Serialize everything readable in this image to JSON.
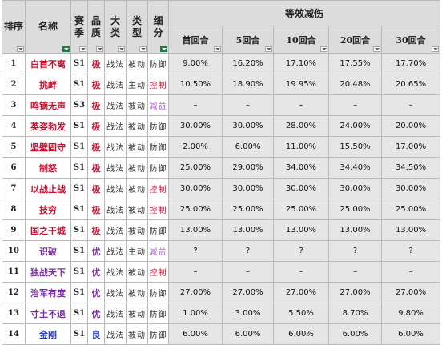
{
  "headers": {
    "rank": "排序",
    "name": "名称",
    "season": "赛季",
    "grade": "品质",
    "category": "大类",
    "type": "类型",
    "subtype": "细分",
    "group": "等效减伤",
    "rounds": [
      "首回合",
      "5回合",
      "10回合",
      "20回合",
      "30回合"
    ]
  },
  "colors": {
    "header_bg": "#dcdcdc",
    "value_bg": "#e6e6e6",
    "name_red": "#c41230",
    "name_blue": "#2a3fb0",
    "name_purple": "#7a2fa0",
    "grade_red": "#c41230",
    "grade_purple": "#7a2fa0",
    "grade_blue": "#2a3fb0",
    "control_red": "#c41230",
    "benefit_purple": "#b05ad0",
    "filter_active": "#1f7a4a"
  },
  "rows": [
    {
      "rank": "1",
      "name": "白首不离",
      "name_color": "#c41230",
      "season": "S1",
      "grade": "极",
      "grade_color": "#c41230",
      "category": "战法",
      "type": "被动",
      "subtype": "防御",
      "sub_color": "#333333",
      "v": [
        "9.00%",
        "16.20%",
        "17.10%",
        "17.55%",
        "17.70%"
      ]
    },
    {
      "rank": "2",
      "name": "挑衅",
      "name_color": "#c41230",
      "season": "S1",
      "grade": "极",
      "grade_color": "#c41230",
      "category": "战法",
      "type": "主动",
      "subtype": "控制",
      "sub_color": "#c41230",
      "v": [
        "10.50%",
        "18.90%",
        "19.95%",
        "20.48%",
        "20.65%"
      ]
    },
    {
      "rank": "3",
      "name": "鸣镝无声",
      "name_color": "#c41230",
      "season": "S3",
      "grade": "极",
      "grade_color": "#c41230",
      "category": "战法",
      "type": "被动",
      "subtype": "减益",
      "sub_color": "#b05ad0",
      "v": [
        "–",
        "–",
        "–",
        "–",
        "–"
      ]
    },
    {
      "rank": "4",
      "name": "英姿勃发",
      "name_color": "#c41230",
      "season": "S1",
      "grade": "极",
      "grade_color": "#c41230",
      "category": "战法",
      "type": "被动",
      "subtype": "防御",
      "sub_color": "#333333",
      "v": [
        "30.00%",
        "30.00%",
        "28.00%",
        "24.00%",
        "20.00%"
      ]
    },
    {
      "rank": "5",
      "name": "坚壁固守",
      "name_color": "#c41230",
      "season": "S1",
      "grade": "极",
      "grade_color": "#c41230",
      "category": "战法",
      "type": "被动",
      "subtype": "防御",
      "sub_color": "#333333",
      "v": [
        "2.00%",
        "6.00%",
        "11.00%",
        "15.50%",
        "17.00%"
      ]
    },
    {
      "rank": "6",
      "name": "制怒",
      "name_color": "#c41230",
      "season": "S1",
      "grade": "极",
      "grade_color": "#c41230",
      "category": "战法",
      "type": "被动",
      "subtype": "防御",
      "sub_color": "#333333",
      "v": [
        "25.00%",
        "29.00%",
        "34.00%",
        "34.40%",
        "34.50%"
      ]
    },
    {
      "rank": "7",
      "name": "以战止战",
      "name_color": "#c41230",
      "season": "S1",
      "grade": "极",
      "grade_color": "#c41230",
      "category": "战法",
      "type": "被动",
      "subtype": "控制",
      "sub_color": "#c41230",
      "v": [
        "30.00%",
        "30.00%",
        "30.00%",
        "30.00%",
        "30.00%"
      ]
    },
    {
      "rank": "8",
      "name": "技穷",
      "name_color": "#c41230",
      "season": "S1",
      "grade": "极",
      "grade_color": "#c41230",
      "category": "战法",
      "type": "被动",
      "subtype": "控制",
      "sub_color": "#c41230",
      "v": [
        "25.00%",
        "25.00%",
        "25.00%",
        "25.00%",
        "25.00%"
      ]
    },
    {
      "rank": "9",
      "name": "国之干城",
      "name_color": "#c41230",
      "season": "S1",
      "grade": "极",
      "grade_color": "#c41230",
      "category": "战法",
      "type": "被动",
      "subtype": "防御",
      "sub_color": "#333333",
      "v": [
        "13.00%",
        "13.00%",
        "13.00%",
        "13.00%",
        "13.00%"
      ]
    },
    {
      "rank": "10",
      "name": "识破",
      "name_color": "#7a2fa0",
      "season": "S1",
      "grade": "优",
      "grade_color": "#7a2fa0",
      "category": "战法",
      "type": "主动",
      "subtype": "减益",
      "sub_color": "#b05ad0",
      "v": [
        "?",
        "?",
        "?",
        "?",
        "?"
      ]
    },
    {
      "rank": "11",
      "name": "独战天下",
      "name_color": "#7a2fa0",
      "season": "S1",
      "grade": "优",
      "grade_color": "#7a2fa0",
      "category": "战法",
      "type": "被动",
      "subtype": "控制",
      "sub_color": "#c41230",
      "v": [
        "–",
        "–",
        "–",
        "–",
        "–"
      ]
    },
    {
      "rank": "12",
      "name": "治军有度",
      "name_color": "#7a2fa0",
      "season": "S1",
      "grade": "优",
      "grade_color": "#7a2fa0",
      "category": "战法",
      "type": "被动",
      "subtype": "防御",
      "sub_color": "#333333",
      "v": [
        "27.00%",
        "27.00%",
        "27.00%",
        "27.00%",
        "27.00%"
      ]
    },
    {
      "rank": "13",
      "name": "寸土不退",
      "name_color": "#7a2fa0",
      "season": "S1",
      "grade": "优",
      "grade_color": "#7a2fa0",
      "category": "战法",
      "type": "被动",
      "subtype": "防御",
      "sub_color": "#333333",
      "v": [
        "1.00%",
        "3.00%",
        "5.50%",
        "8.70%",
        "9.80%"
      ]
    },
    {
      "rank": "14",
      "name": "金刚",
      "name_color": "#2a3fb0",
      "season": "S1",
      "grade": "良",
      "grade_color": "#2a3fb0",
      "category": "战法",
      "type": "被动",
      "subtype": "防御",
      "sub_color": "#333333",
      "v": [
        "6.00%",
        "6.00%",
        "6.00%",
        "6.00%",
        "6.00%"
      ]
    }
  ]
}
